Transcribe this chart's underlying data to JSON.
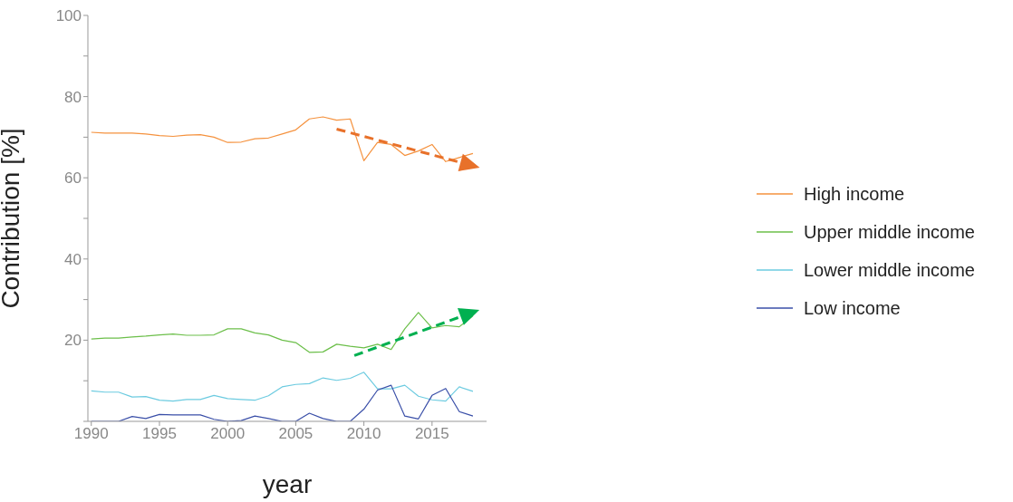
{
  "chart_data": {
    "type": "line",
    "xlabel": "year",
    "ylabel": "Contribution  [%]",
    "x": [
      1990,
      1991,
      1992,
      1993,
      1994,
      1995,
      1996,
      1997,
      1998,
      1999,
      2000,
      2001,
      2002,
      2003,
      2004,
      2005,
      2006,
      2007,
      2008,
      2009,
      2010,
      2011,
      2012,
      2013,
      2014,
      2015,
      2016,
      2017,
      2018
    ],
    "xlim": [
      1989.75,
      2019
    ],
    "xticks": [
      1990,
      1995,
      2000,
      2005,
      2010,
      2015
    ],
    "ylim": [
      0,
      100
    ],
    "yticks": [
      {
        "value": 0,
        "label": null
      },
      {
        "value": 10,
        "label": null
      },
      20,
      {
        "value": 30,
        "label": null
      },
      40,
      {
        "value": 50,
        "label": null
      },
      60,
      {
        "value": 70,
        "label": null
      },
      80,
      {
        "value": 90,
        "label": null
      },
      100
    ],
    "grid": false,
    "legend": "right",
    "marker": "none",
    "line_style": "solid",
    "series": [
      {
        "name": "High income",
        "color": "#f5923e",
        "values": [
          71.2,
          71,
          71,
          71,
          70.8,
          70.4,
          70.2,
          70.5,
          70.6,
          70,
          68.7,
          68.8,
          69.6,
          69.8,
          70.8,
          71.8,
          74.5,
          75,
          74.2,
          74.5,
          64.2,
          68.7,
          68.2,
          65.5,
          66.6,
          68.2,
          64,
          65,
          66
        ]
      },
      {
        "name": "Upper middle income",
        "color": "#6cbf4a",
        "values": [
          20.3,
          20.5,
          20.5,
          20.8,
          21,
          21.3,
          21.5,
          21.2,
          21.2,
          21.3,
          22.8,
          22.8,
          21.8,
          21.3,
          20,
          19.4,
          17,
          17.1,
          19,
          18.5,
          18.1,
          19,
          17.7,
          22.8,
          26.8,
          23,
          23.6,
          23.3,
          26
        ]
      },
      {
        "name": "Lower middle income",
        "color": "#6ccbe0",
        "values": [
          7.5,
          7.2,
          7.2,
          6,
          6.1,
          5.2,
          5,
          5.4,
          5.4,
          6.4,
          5.6,
          5.4,
          5.2,
          6.3,
          8.5,
          9.1,
          9.3,
          10.7,
          10.1,
          10.6,
          12.1,
          8,
          8,
          8.9,
          6.2,
          5.3,
          5,
          8.5,
          7.4
        ]
      },
      {
        "name": "Low income",
        "color": "#3a4fa8",
        "values": [
          0,
          0,
          0,
          1.2,
          0.7,
          1.7,
          1.6,
          1.6,
          1.6,
          0.5,
          0,
          0.2,
          1.3,
          0.7,
          0,
          0,
          2,
          0.7,
          0,
          0,
          3,
          7.7,
          8.9,
          1.3,
          0.6,
          6.4,
          8.1,
          2.4,
          1.3
        ]
      },
      {
        "type": "line",
        "color": "#e8712a",
        "line_style": "dashed",
        "marker": "triangle",
        "x": [
          2008,
          2017.6
        ],
        "values": [
          72,
          63.3
        ]
      },
      {
        "type": "line",
        "color": "#00b050",
        "line_style": "dashed",
        "marker": "triangle",
        "x": [
          2009.3,
          2017.6
        ],
        "values": [
          16.2,
          26.4
        ]
      }
    ]
  }
}
